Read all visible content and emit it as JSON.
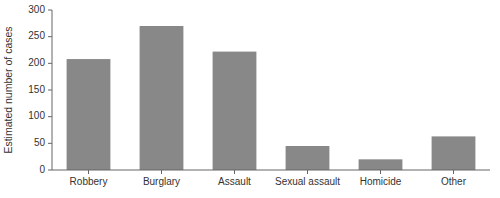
{
  "chart_data": {
    "type": "bar",
    "categories": [
      "Robbery",
      "Burglary",
      "Assault",
      "Sexual assault",
      "Homicide",
      "Other"
    ],
    "values": [
      208,
      270,
      222,
      45,
      20,
      63
    ],
    "color": "#888888",
    "ylabel": "Estimated number of cases",
    "ylim": [
      0,
      300
    ],
    "yticks": [
      0,
      50,
      100,
      150,
      200,
      250,
      300
    ],
    "grid": false
  }
}
